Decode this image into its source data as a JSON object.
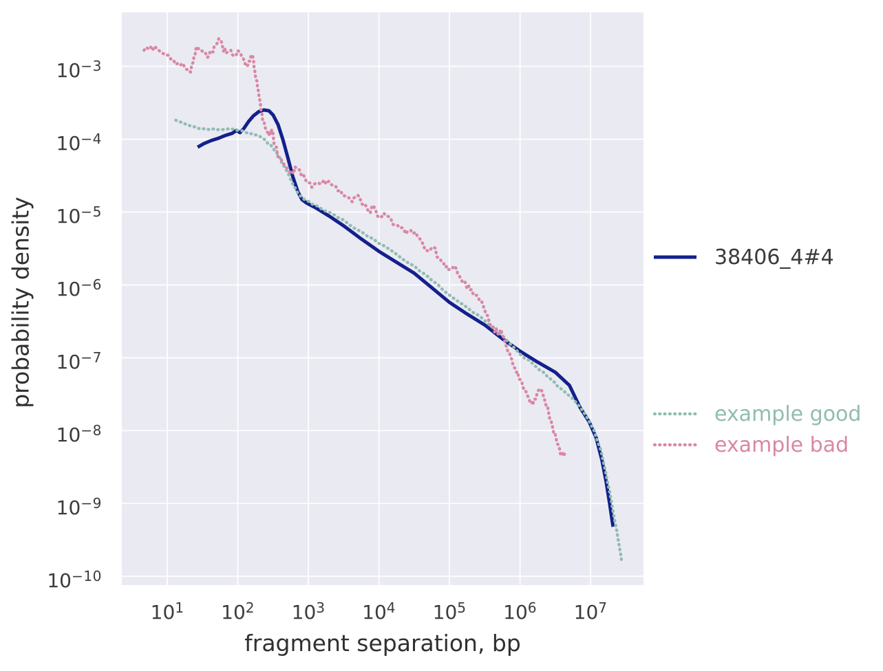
{
  "chart_data": {
    "type": "line",
    "title": "",
    "xlabel": "fragment separation, bp",
    "ylabel": "probability density",
    "x_scale": "log10",
    "y_scale": "log10",
    "xlim_log10": [
      0.355,
      7.75
    ],
    "ylim_log10": [
      -10.12,
      -2.26
    ],
    "x_tick_exponents": [
      1,
      2,
      3,
      4,
      5,
      6,
      7
    ],
    "y_tick_exponents": [
      -3,
      -4,
      -5,
      -6,
      -7,
      -8,
      -9,
      -10
    ],
    "grid": "on",
    "plot_background": "#eaeaf2",
    "grid_color": "#ffffff",
    "tick_label_color": "#3c3c3c",
    "axis_label_color": "#303030",
    "legend_text_color": "#3a3a3a",
    "legend_position": "right-outside",
    "series": [
      {
        "name": "38406_4#4",
        "style": "solid",
        "color": "#13208c",
        "width": 5,
        "jitter_log10": 0,
        "points_log10": [
          [
            1.43,
            -4.11
          ],
          [
            1.52,
            -4.06
          ],
          [
            1.62,
            -4.02
          ],
          [
            1.72,
            -3.99
          ],
          [
            1.82,
            -3.95
          ],
          [
            1.92,
            -3.92
          ],
          [
            1.98,
            -3.88
          ],
          [
            2.03,
            -3.91
          ],
          [
            2.08,
            -3.86
          ],
          [
            2.15,
            -3.76
          ],
          [
            2.22,
            -3.68
          ],
          [
            2.3,
            -3.62
          ],
          [
            2.37,
            -3.6
          ],
          [
            2.44,
            -3.61
          ],
          [
            2.5,
            -3.67
          ],
          [
            2.57,
            -3.8
          ],
          [
            2.64,
            -4.01
          ],
          [
            2.71,
            -4.26
          ],
          [
            2.78,
            -4.52
          ],
          [
            2.85,
            -4.72
          ],
          [
            2.91,
            -4.83
          ],
          [
            2.98,
            -4.88
          ],
          [
            3.1,
            -4.94
          ],
          [
            3.3,
            -5.06
          ],
          [
            3.5,
            -5.19
          ],
          [
            3.75,
            -5.37
          ],
          [
            4.0,
            -5.54
          ],
          [
            4.25,
            -5.69
          ],
          [
            4.5,
            -5.84
          ],
          [
            4.75,
            -6.04
          ],
          [
            5.0,
            -6.24
          ],
          [
            5.25,
            -6.4
          ],
          [
            5.5,
            -6.55
          ],
          [
            5.75,
            -6.74
          ],
          [
            6.0,
            -6.91
          ],
          [
            6.25,
            -7.06
          ],
          [
            6.5,
            -7.2
          ],
          [
            6.7,
            -7.38
          ],
          [
            6.85,
            -7.68
          ],
          [
            6.98,
            -7.88
          ],
          [
            7.08,
            -8.1
          ],
          [
            7.16,
            -8.4
          ],
          [
            7.22,
            -8.7
          ],
          [
            7.27,
            -9.0
          ],
          [
            7.3,
            -9.2
          ],
          [
            7.32,
            -9.32
          ]
        ]
      },
      {
        "name": "example good",
        "style": "dotted",
        "color": "#90bcb1",
        "width": 4.4,
        "jitter_log10": 0.015,
        "points_log10": [
          [
            1.12,
            -3.74
          ],
          [
            1.25,
            -3.79
          ],
          [
            1.4,
            -3.83
          ],
          [
            1.55,
            -3.86
          ],
          [
            1.7,
            -3.87
          ],
          [
            1.85,
            -3.86
          ],
          [
            2.0,
            -3.88
          ],
          [
            2.12,
            -3.91
          ],
          [
            2.24,
            -3.94
          ],
          [
            2.35,
            -3.99
          ],
          [
            2.46,
            -4.07
          ],
          [
            2.56,
            -4.2
          ],
          [
            2.66,
            -4.38
          ],
          [
            2.76,
            -4.58
          ],
          [
            2.85,
            -4.74
          ],
          [
            2.93,
            -4.82
          ],
          [
            3.05,
            -4.89
          ],
          [
            3.25,
            -4.99
          ],
          [
            3.5,
            -5.11
          ],
          [
            3.75,
            -5.27
          ],
          [
            4.0,
            -5.43
          ],
          [
            4.25,
            -5.58
          ],
          [
            4.5,
            -5.74
          ],
          [
            4.75,
            -5.94
          ],
          [
            5.0,
            -6.14
          ],
          [
            5.25,
            -6.31
          ],
          [
            5.5,
            -6.49
          ],
          [
            5.75,
            -6.7
          ],
          [
            6.0,
            -6.95
          ],
          [
            6.2,
            -7.1
          ],
          [
            6.4,
            -7.27
          ],
          [
            6.6,
            -7.44
          ],
          [
            6.8,
            -7.62
          ],
          [
            6.93,
            -7.79
          ],
          [
            7.05,
            -8.0
          ],
          [
            7.15,
            -8.28
          ],
          [
            7.22,
            -8.6
          ],
          [
            7.29,
            -8.94
          ],
          [
            7.36,
            -9.32
          ],
          [
            7.41,
            -9.6
          ],
          [
            7.44,
            -9.79
          ]
        ]
      },
      {
        "name": "example bad",
        "style": "dotted",
        "color": "#d987a4",
        "width": 4.4,
        "jitter_log10": 0.045,
        "points_log10": [
          [
            0.67,
            -2.78
          ],
          [
            0.76,
            -2.73
          ],
          [
            0.85,
            -2.76
          ],
          [
            0.95,
            -2.83
          ],
          [
            1.05,
            -2.9
          ],
          [
            1.15,
            -2.96
          ],
          [
            1.25,
            -3.02
          ],
          [
            1.33,
            -3.08
          ],
          [
            1.38,
            -2.86
          ],
          [
            1.42,
            -2.73
          ],
          [
            1.5,
            -2.8
          ],
          [
            1.57,
            -2.88
          ],
          [
            1.63,
            -2.8
          ],
          [
            1.68,
            -2.72
          ],
          [
            1.73,
            -2.62
          ],
          [
            1.78,
            -2.72
          ],
          [
            1.83,
            -2.82
          ],
          [
            1.9,
            -2.78
          ],
          [
            1.96,
            -2.85
          ],
          [
            2.02,
            -2.8
          ],
          [
            2.08,
            -2.9
          ],
          [
            2.13,
            -3.0
          ],
          [
            2.17,
            -2.93
          ],
          [
            2.21,
            -2.86
          ],
          [
            2.24,
            -3.06
          ],
          [
            2.27,
            -3.2
          ],
          [
            2.3,
            -3.42
          ],
          [
            2.33,
            -3.62
          ],
          [
            2.36,
            -3.77
          ],
          [
            2.4,
            -3.88
          ],
          [
            2.44,
            -3.95
          ],
          [
            2.48,
            -3.87
          ],
          [
            2.53,
            -4.1
          ],
          [
            2.58,
            -4.25
          ],
          [
            2.64,
            -4.33
          ],
          [
            2.7,
            -4.41
          ],
          [
            2.77,
            -4.45
          ],
          [
            2.83,
            -4.4
          ],
          [
            2.9,
            -4.5
          ],
          [
            2.97,
            -4.58
          ],
          [
            3.05,
            -4.66
          ],
          [
            3.13,
            -4.6
          ],
          [
            3.22,
            -4.56
          ],
          [
            3.32,
            -4.62
          ],
          [
            3.42,
            -4.71
          ],
          [
            3.52,
            -4.78
          ],
          [
            3.62,
            -4.86
          ],
          [
            3.7,
            -4.77
          ],
          [
            3.78,
            -4.91
          ],
          [
            3.85,
            -4.99
          ],
          [
            3.93,
            -4.93
          ],
          [
            4.01,
            -5.08
          ],
          [
            4.1,
            -5.05
          ],
          [
            4.2,
            -5.17
          ],
          [
            4.3,
            -5.22
          ],
          [
            4.38,
            -5.3
          ],
          [
            4.45,
            -5.25
          ],
          [
            4.55,
            -5.34
          ],
          [
            4.63,
            -5.45
          ],
          [
            4.7,
            -5.54
          ],
          [
            4.77,
            -5.48
          ],
          [
            4.85,
            -5.63
          ],
          [
            4.92,
            -5.71
          ],
          [
            4.99,
            -5.79
          ],
          [
            5.06,
            -5.74
          ],
          [
            5.14,
            -5.88
          ],
          [
            5.22,
            -5.96
          ],
          [
            5.29,
            -6.07
          ],
          [
            5.36,
            -6.15
          ],
          [
            5.43,
            -6.22
          ],
          [
            5.5,
            -6.35
          ],
          [
            5.56,
            -6.5
          ],
          [
            5.62,
            -6.58
          ],
          [
            5.68,
            -6.66
          ],
          [
            5.73,
            -6.61
          ],
          [
            5.79,
            -6.8
          ],
          [
            5.85,
            -6.93
          ],
          [
            5.9,
            -7.1
          ],
          [
            5.95,
            -7.2
          ],
          [
            6.0,
            -7.3
          ],
          [
            6.06,
            -7.45
          ],
          [
            6.12,
            -7.55
          ],
          [
            6.18,
            -7.65
          ],
          [
            6.24,
            -7.5
          ],
          [
            6.3,
            -7.43
          ],
          [
            6.36,
            -7.62
          ],
          [
            6.41,
            -7.78
          ],
          [
            6.46,
            -7.95
          ],
          [
            6.51,
            -8.1
          ],
          [
            6.56,
            -8.25
          ],
          [
            6.6,
            -8.34
          ],
          [
            6.64,
            -8.3
          ]
        ]
      }
    ]
  }
}
